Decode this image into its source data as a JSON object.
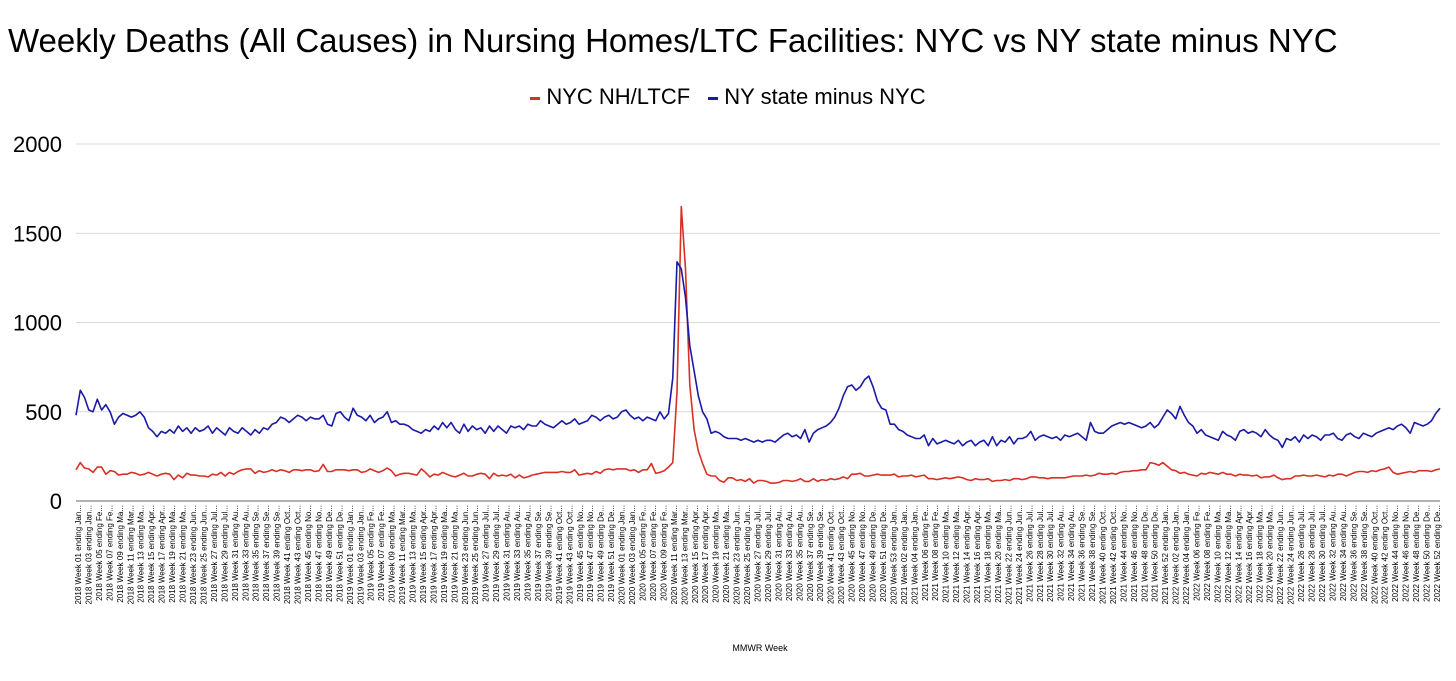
{
  "chart_data": {
    "type": "line",
    "title": "Weekly Deaths (All Causes) in Nursing Homes/LTC Facilities: NYC vs NY state minus NYC",
    "xlabel": "MMWR Week",
    "ylabel": "",
    "ylim": [
      0,
      2000
    ],
    "yticks": [
      0,
      500,
      1000,
      1500,
      2000
    ],
    "grid": true,
    "legend": "top-center",
    "x_tick_labels": [
      "2018 Week 01 ending Jan...",
      "2018 Week 03 ending Jan...",
      "2018 Week 05 ending Fe...",
      "2018 Week 07 ending Fe...",
      "2018 Week 09 ending Ma...",
      "2018 Week 11 ending Mar...",
      "2018 Week 13 ending Ma...",
      "2018 Week 15 ending Apr...",
      "2018 Week 17 ending Apr...",
      "2018 Week 19 ending Ma...",
      "2018 Week 21 ending Ma...",
      "2018 Week 23 ending Jun...",
      "2018 Week 25 ending Jun...",
      "2018 Week 27 ending Jul...",
      "2018 Week 29 ending Jul...",
      "2018 Week 31 ending Au...",
      "2018 Week 33 ending Au...",
      "2018 Week 35 ending Se...",
      "2018 Week 37 ending Se...",
      "2018 Week 39 ending Se...",
      "2018 Week 41 ending Oct...",
      "2018 Week 43 ending Oct...",
      "2018 Week 45 ending No...",
      "2018 Week 47 ending No...",
      "2018 Week 49 ending De...",
      "2018 Week 51 ending De...",
      "2019 Week 01 ending Jan...",
      "2019 Week 03 ending Jan...",
      "2019 Week 05 ending Fe...",
      "2019 Week 07 ending Fe...",
      "2019 Week 09 ending Ma...",
      "2019 Week 11 ending Mar...",
      "2019 Week 13 ending Ma...",
      "2019 Week 15 ending Apr...",
      "2019 Week 17 ending Apr...",
      "2019 Week 19 ending Ma...",
      "2019 Week 21 ending Ma...",
      "2019 Week 23 ending Jun...",
      "2019 Week 25 ending Jun...",
      "2019 Week 27 ending Jul...",
      "2019 Week 29 ending Jul...",
      "2019 Week 31 ending Au...",
      "2019 Week 33 ending Au...",
      "2019 Week 35 ending Au...",
      "2019 Week 37 ending Se...",
      "2019 Week 39 ending Se...",
      "2019 Week 41 ending Oct...",
      "2019 Week 43 ending Oct...",
      "2019 Week 45 ending No...",
      "2019 Week 47 ending No...",
      "2019 Week 49 ending De...",
      "2019 Week 51 ending De...",
      "2020 Week 01 ending Jan...",
      "2020 Week 03 ending Jan...",
      "2020 Week 05 ending Fe...",
      "2020 Week 07 ending Fe...",
      "2020 Week 09 ending Fe...",
      "2020 Week 11 ending Mar...",
      "2020 Week 13 ending Mar...",
      "2020 Week 15 ending Apr...",
      "2020 Week 17 ending Apr...",
      "2020 Week 19 ending Ma...",
      "2020 Week 21 ending Ma...",
      "2020 Week 23 ending Jun...",
      "2020 Week 25 ending Jun...",
      "2020 Week 27 ending Jul...",
      "2020 Week 29 ending Jul...",
      "2020 Week 31 ending Au...",
      "2020 Week 33 ending Au...",
      "2020 Week 35 ending Au...",
      "2020 Week 37 ending Se...",
      "2020 Week 39 ending Se...",
      "2020 Week 41 ending Oct...",
      "2020 Week 43 ending Oct...",
      "2020 Week 45 ending No...",
      "2020 Week 47 ending No...",
      "2020 Week 49 ending De...",
      "2020 Week 51 ending De...",
      "2020 Week 53 ending Jan...",
      "2021 Week 02 ending Jan...",
      "2021 Week 04 ending Jan...",
      "2021 Week 06 ending Fe...",
      "2021 Week 08 ending Fe...",
      "2021 Week 10 ending Ma...",
      "2021 Week 12 ending Ma...",
      "2021 Week 14 ending Apr...",
      "2021 Week 16 ending Apr...",
      "2021 Week 18 ending Ma...",
      "2021 Week 20 ending Ma...",
      "2021 Week 22 ending Jun...",
      "2021 Week 24 ending Jun...",
      "2021 Week 26 ending Jul...",
      "2021 Week 28 ending Jul...",
      "2021 Week 30 ending Jul...",
      "2021 Week 32 ending Au...",
      "2021 Week 34 ending Au...",
      "2021 Week 36 ending Se...",
      "2021 Week 38 ending Se...",
      "2021 Week 40 ending Oct...",
      "2021 Week 42 ending Oct...",
      "2021 Week 44 ending No...",
      "2021 Week 46 ending No...",
      "2021 Week 48 ending De...",
      "2021 Week 50 ending De...",
      "2021 Week 52 ending Jan...",
      "2022 Week 02 ending Jan...",
      "2022 Week 04 ending Jan...",
      "2022 Week 06 ending Fe...",
      "2022 Week 08 ending Fe...",
      "2022 Week 10 ending Ma...",
      "2022 Week 12 ending Ma...",
      "2022 Week 14 ending Apr...",
      "2022 Week 16 ending Apr...",
      "2022 Week 18 ending Ma...",
      "2022 Week 20 ending Ma...",
      "2022 Week 22 ending Jun...",
      "2022 Week 24 ending Jun...",
      "2022 Week 26 ending Jul...",
      "2022 Week 28 ending Jul...",
      "2022 Week 30 ending Jul...",
      "2022 Week 32 ending Au...",
      "2022 Week 34 ending Au...",
      "2022 Week 36 ending Se...",
      "2022 Week 38 ending Se...",
      "2022 Week 40 ending Oct...",
      "2022 Week 42 ending Oct...",
      "2022 Week 44 ending No...",
      "2022 Week 46 ending No...",
      "2022 Week 48 ending De...",
      "2022 Week 50 ending De...",
      "2022 Week 52 ending De..."
    ],
    "series": [
      {
        "name": "NYC NH/LTCF",
        "color": "#d93025",
        "values": [
          175,
          215,
          185,
          180,
          160,
          190,
          190,
          150,
          170,
          165,
          145,
          150,
          150,
          160,
          155,
          145,
          150,
          160,
          150,
          140,
          150,
          155,
          150,
          120,
          145,
          130,
          155,
          145,
          145,
          140,
          140,
          135,
          150,
          145,
          160,
          140,
          160,
          150,
          165,
          175,
          180,
          180,
          155,
          170,
          160,
          165,
          175,
          165,
          175,
          170,
          160,
          175,
          175,
          170,
          175,
          175,
          165,
          170,
          205,
          165,
          165,
          175,
          175,
          175,
          170,
          175,
          175,
          160,
          165,
          180,
          170,
          160,
          170,
          185,
          170,
          140,
          150,
          155,
          155,
          150,
          145,
          180,
          160,
          135,
          150,
          145,
          160,
          150,
          140,
          135,
          145,
          155,
          140,
          140,
          150,
          155,
          150,
          125,
          155,
          140,
          145,
          140,
          150,
          130,
          145,
          130,
          135,
          145,
          150,
          155,
          160,
          160,
          160,
          160,
          165,
          160,
          160,
          175,
          145,
          150,
          155,
          150,
          165,
          155,
          175,
          180,
          175,
          180,
          180,
          180,
          170,
          175,
          160,
          175,
          175,
          210,
          155,
          160,
          170,
          190,
          215,
          610,
          1650,
          1300,
          650,
          400,
          280,
          210,
          150,
          140,
          140,
          115,
          105,
          130,
          130,
          115,
          120,
          110,
          125,
          100,
          115,
          115,
          110,
          100,
          100,
          105,
          115,
          115,
          110,
          115,
          125,
          110,
          110,
          125,
          110,
          120,
          115,
          125,
          120,
          125,
          135,
          125,
          150,
          150,
          155,
          140,
          140,
          145,
          150,
          145,
          145,
          145,
          150,
          135,
          140,
          140,
          145,
          135,
          140,
          145,
          125,
          125,
          120,
          125,
          130,
          125,
          130,
          135,
          130,
          120,
          115,
          125,
          120,
          120,
          125,
          110,
          115,
          115,
          120,
          115,
          125,
          125,
          120,
          125,
          135,
          135,
          130,
          130,
          125,
          130,
          130,
          130,
          130,
          135,
          140,
          140,
          140,
          145,
          140,
          145,
          155,
          150,
          150,
          155,
          150,
          160,
          165,
          165,
          170,
          170,
          175,
          175,
          215,
          210,
          200,
          215,
          195,
          175,
          170,
          155,
          160,
          150,
          145,
          140,
          155,
          150,
          160,
          155,
          150,
          160,
          150,
          150,
          140,
          150,
          145,
          145,
          140,
          145,
          130,
          135,
          135,
          145,
          130,
          120,
          125,
          125,
          140,
          140,
          145,
          140,
          140,
          145,
          140,
          135,
          145,
          140,
          150,
          150,
          140,
          150,
          160,
          165,
          165,
          160,
          170,
          165,
          175,
          180,
          190,
          160,
          150,
          155,
          160,
          165,
          160,
          170,
          170,
          170,
          165,
          175,
          180
        ]
      },
      {
        "name": "NY state minus NYC",
        "color": "#1a1aa8",
        "values": [
          480,
          620,
          580,
          510,
          500,
          570,
          510,
          540,
          500,
          430,
          470,
          490,
          480,
          470,
          480,
          500,
          470,
          410,
          390,
          360,
          390,
          380,
          400,
          380,
          420,
          390,
          410,
          380,
          410,
          390,
          400,
          420,
          380,
          410,
          390,
          370,
          410,
          390,
          380,
          410,
          390,
          370,
          400,
          380,
          410,
          400,
          430,
          440,
          470,
          460,
          440,
          460,
          480,
          470,
          450,
          470,
          460,
          460,
          480,
          430,
          420,
          490,
          500,
          470,
          450,
          520,
          480,
          470,
          450,
          480,
          440,
          460,
          470,
          500,
          440,
          450,
          430,
          430,
          420,
          400,
          390,
          380,
          400,
          390,
          420,
          400,
          440,
          410,
          440,
          400,
          380,
          430,
          390,
          420,
          400,
          410,
          380,
          420,
          390,
          420,
          400,
          380,
          420,
          410,
          420,
          400,
          430,
          420,
          420,
          450,
          430,
          420,
          410,
          430,
          450,
          430,
          440,
          460,
          430,
          440,
          450,
          480,
          470,
          450,
          470,
          480,
          460,
          470,
          500,
          510,
          480,
          460,
          470,
          450,
          470,
          460,
          450,
          500,
          460,
          490,
          690,
          1340,
          1300,
          1140,
          870,
          730,
          590,
          500,
          460,
          380,
          390,
          380,
          360,
          350,
          350,
          350,
          340,
          350,
          340,
          330,
          340,
          330,
          340,
          340,
          330,
          350,
          370,
          380,
          360,
          370,
          350,
          400,
          330,
          380,
          400,
          410,
          420,
          440,
          470,
          520,
          590,
          640,
          650,
          620,
          640,
          680,
          700,
          640,
          560,
          520,
          510,
          430,
          430,
          400,
          390,
          370,
          360,
          350,
          350,
          370,
          310,
          350,
          320,
          330,
          340,
          330,
          320,
          340,
          310,
          330,
          340,
          310,
          330,
          340,
          310,
          360,
          310,
          340,
          330,
          360,
          320,
          350,
          350,
          360,
          390,
          340,
          360,
          370,
          360,
          350,
          360,
          340,
          370,
          360,
          370,
          380,
          360,
          340,
          440,
          390,
          380,
          380,
          400,
          420,
          430,
          440,
          430,
          440,
          430,
          420,
          410,
          420,
          440,
          410,
          430,
          470,
          510,
          490,
          460,
          530,
          480,
          440,
          420,
          380,
          400,
          370,
          360,
          350,
          340,
          390,
          370,
          360,
          340,
          390,
          400,
          380,
          390,
          380,
          360,
          400,
          370,
          350,
          340,
          300,
          350,
          340,
          360,
          330,
          370,
          350,
          370,
          360,
          340,
          370,
          370,
          380,
          350,
          340,
          370,
          380,
          360,
          350,
          380,
          370,
          360,
          380,
          390,
          400,
          410,
          400,
          420,
          430,
          410,
          380,
          440,
          430,
          420,
          430,
          450,
          490,
          520
        ]
      }
    ]
  }
}
